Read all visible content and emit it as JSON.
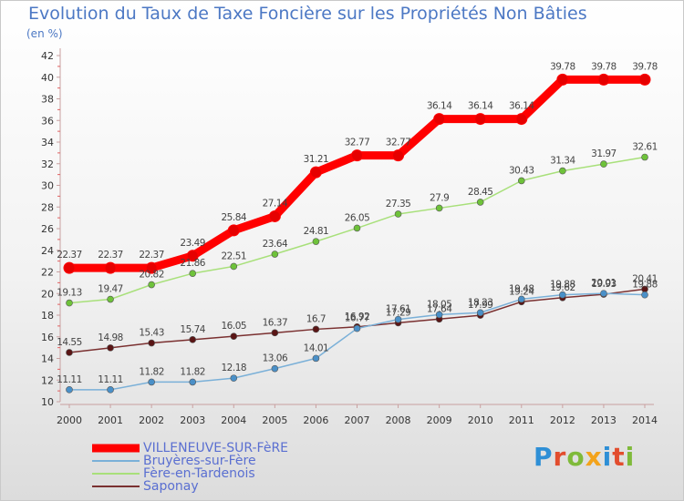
{
  "title": "Evolution du Taux de Taxe Foncière sur les Propriétés Non Bâties",
  "subtitle": "(en %)",
  "logo": {
    "text": "Proxiti",
    "colors": [
      "#2e8fd6",
      "#e24d2e",
      "#7fba3a",
      "#f3a31b",
      "#2e8fd6",
      "#e24d2e",
      "#7fba3a"
    ]
  },
  "chart_data": {
    "type": "line",
    "title": "Evolution du Taux de Taxe Foncière sur les Propriétés Non Bâties",
    "ylabel": "(en %)",
    "xlabel": "",
    "x": [
      "2000",
      "2001",
      "2002",
      "2003",
      "2004",
      "2005",
      "2006",
      "2007",
      "2008",
      "2009",
      "2010",
      "2011",
      "2012",
      "2013",
      "2014"
    ],
    "ylim": [
      10,
      42
    ],
    "yticks": [
      10,
      12,
      14,
      16,
      18,
      20,
      22,
      24,
      26,
      28,
      30,
      32,
      34,
      36,
      38,
      40,
      42
    ],
    "grid": false,
    "legend": "bottom-left",
    "series": [
      {
        "name": "VILLENEUVE-SUR-FèRE",
        "color": "#ff0000",
        "point_color": "#e60000",
        "width": 9,
        "marker": 6,
        "values": [
          22.37,
          22.37,
          22.37,
          23.49,
          25.84,
          27.14,
          31.21,
          32.77,
          32.77,
          36.14,
          36.14,
          36.14,
          39.78,
          39.78,
          39.78
        ],
        "labels": [
          "22.37",
          "22.37",
          "22.37",
          "23.49",
          "25.84",
          "27.14",
          "31.21",
          "32.77",
          "32.77",
          "36.14",
          "36.14",
          "36.14",
          "39.78",
          "39.78",
          "39.78"
        ]
      },
      {
        "name": "Bruyères-sur-Fère",
        "color": "#7ab0d8",
        "point_color": "#4a90c8",
        "width": 1.5,
        "marker": 3.5,
        "values": [
          11.11,
          11.11,
          11.82,
          11.82,
          12.18,
          13.06,
          14.01,
          16.77,
          17.61,
          18.05,
          18.23,
          19.48,
          19.88,
          20.01,
          19.88
        ],
        "labels": [
          "11.11",
          "11.11",
          "11.82",
          "11.82",
          "12.18",
          "13.06",
          "14.01",
          "16.77",
          "17.61",
          "18.05",
          "18.23",
          "19.48",
          "19.88",
          "20.01",
          "19.88"
        ]
      },
      {
        "name": "Fère-en-Tardenois",
        "color": "#a8e07a",
        "point_color": "#6ec23a",
        "width": 1.5,
        "marker": 3.5,
        "values": [
          19.13,
          19.47,
          20.82,
          21.86,
          22.51,
          23.64,
          24.81,
          26.05,
          27.35,
          27.9,
          28.45,
          30.43,
          31.34,
          31.97,
          32.61
        ],
        "labels": [
          "19.13",
          "19.47",
          "20.82",
          "21.86",
          "22.51",
          "23.64",
          "24.81",
          "26.05",
          "27.35",
          "27.9",
          "28.45",
          "30.43",
          "31.34",
          "31.97",
          "32.61"
        ]
      },
      {
        "name": "Saponay",
        "color": "#7a3030",
        "point_color": "#5a1515",
        "width": 1.5,
        "marker": 3.5,
        "values": [
          14.55,
          14.98,
          15.43,
          15.74,
          16.05,
          16.37,
          16.7,
          16.92,
          17.29,
          17.64,
          17.99,
          19.24,
          19.62,
          19.93,
          20.41
        ],
        "labels": [
          "14.55",
          "14.98",
          "15.43",
          "15.74",
          "16.05",
          "16.37",
          "16.7",
          "16.92",
          "17.29",
          "17.64",
          "17.99",
          "19.24",
          "19.62",
          "19.93",
          "20.41"
        ]
      }
    ]
  }
}
